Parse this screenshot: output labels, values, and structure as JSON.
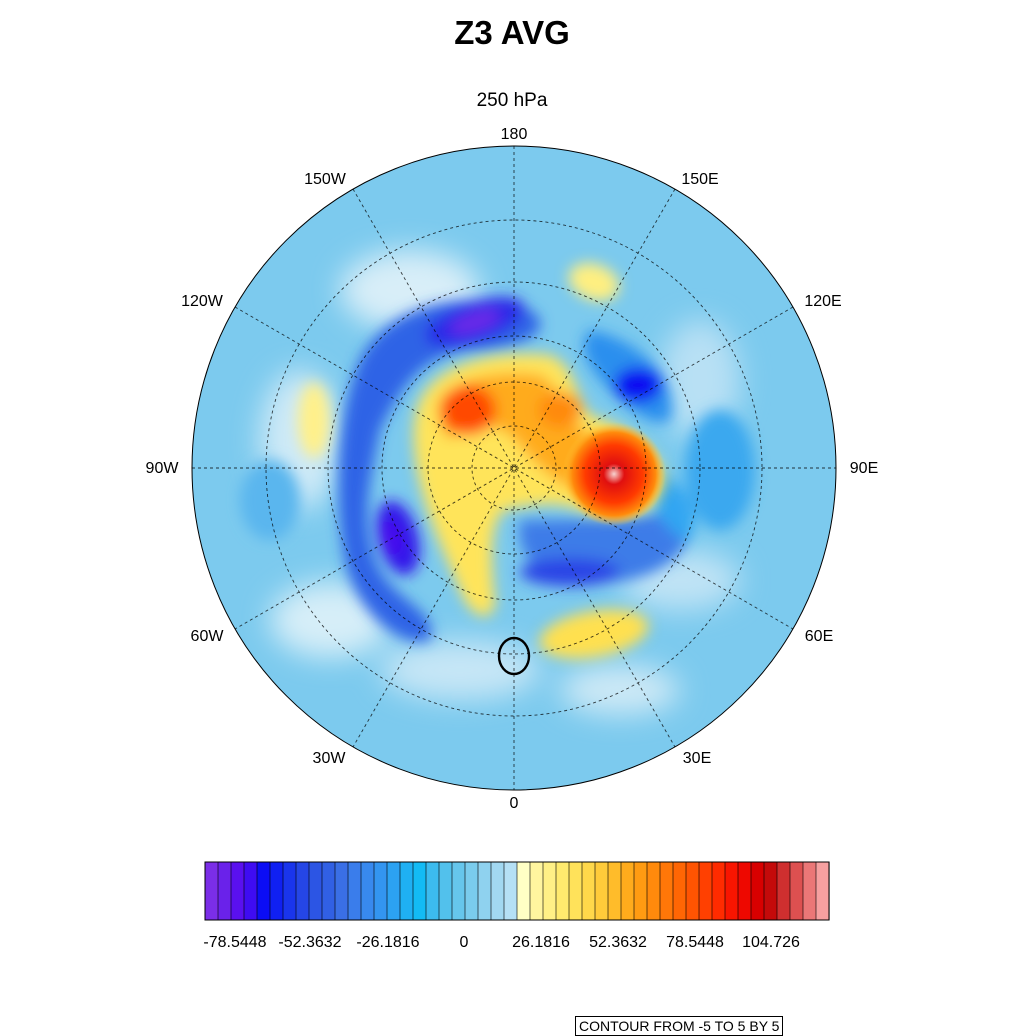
{
  "title": "Z3 AVG",
  "subtitle": "250 hPa",
  "longitude_labels": [
    "180",
    "150E",
    "120E",
    "90E",
    "60E",
    "30E",
    "0",
    "30W",
    "60W",
    "90W",
    "120W",
    "150W"
  ],
  "colorbar": {
    "tick_labels": [
      "-78.5448",
      "-52.3632",
      "-26.1816",
      "0",
      "26.1816",
      "52.3632",
      "78.5448",
      "104.726"
    ],
    "colors": [
      "#7b2ee8",
      "#6a22ea",
      "#5a10ef",
      "#3f0cf2",
      "#0b0df5",
      "#1020f2",
      "#1a35ec",
      "#2546e6",
      "#2c55e4",
      "#3160e4",
      "#3a6fe6",
      "#3a7deb",
      "#3889ee",
      "#3395f0",
      "#2ca2f2",
      "#1fb0f3",
      "#13bbf4",
      "#3cbbee",
      "#52c1ec",
      "#66c6ec",
      "#7acced",
      "#8fd2ef",
      "#a2d8f1",
      "#b5e0f5",
      "#ffffc5",
      "#fff59f",
      "#fff086",
      "#ffea6e",
      "#ffe25a",
      "#ffd84a",
      "#ffcb3a",
      "#ffbc2a",
      "#ffab1c",
      "#ff9b12",
      "#ff8a0c",
      "#ff7708",
      "#ff6604",
      "#ff5402",
      "#ff4001",
      "#ff2b00",
      "#f81500",
      "#ee0800",
      "#d80000",
      "#c40a0a",
      "#cf2f2f",
      "#dd5050",
      "#eb7777",
      "#f6a0a0"
    ]
  },
  "contour_info": "CONTOUR FROM -5 TO 5 BY 5"
}
